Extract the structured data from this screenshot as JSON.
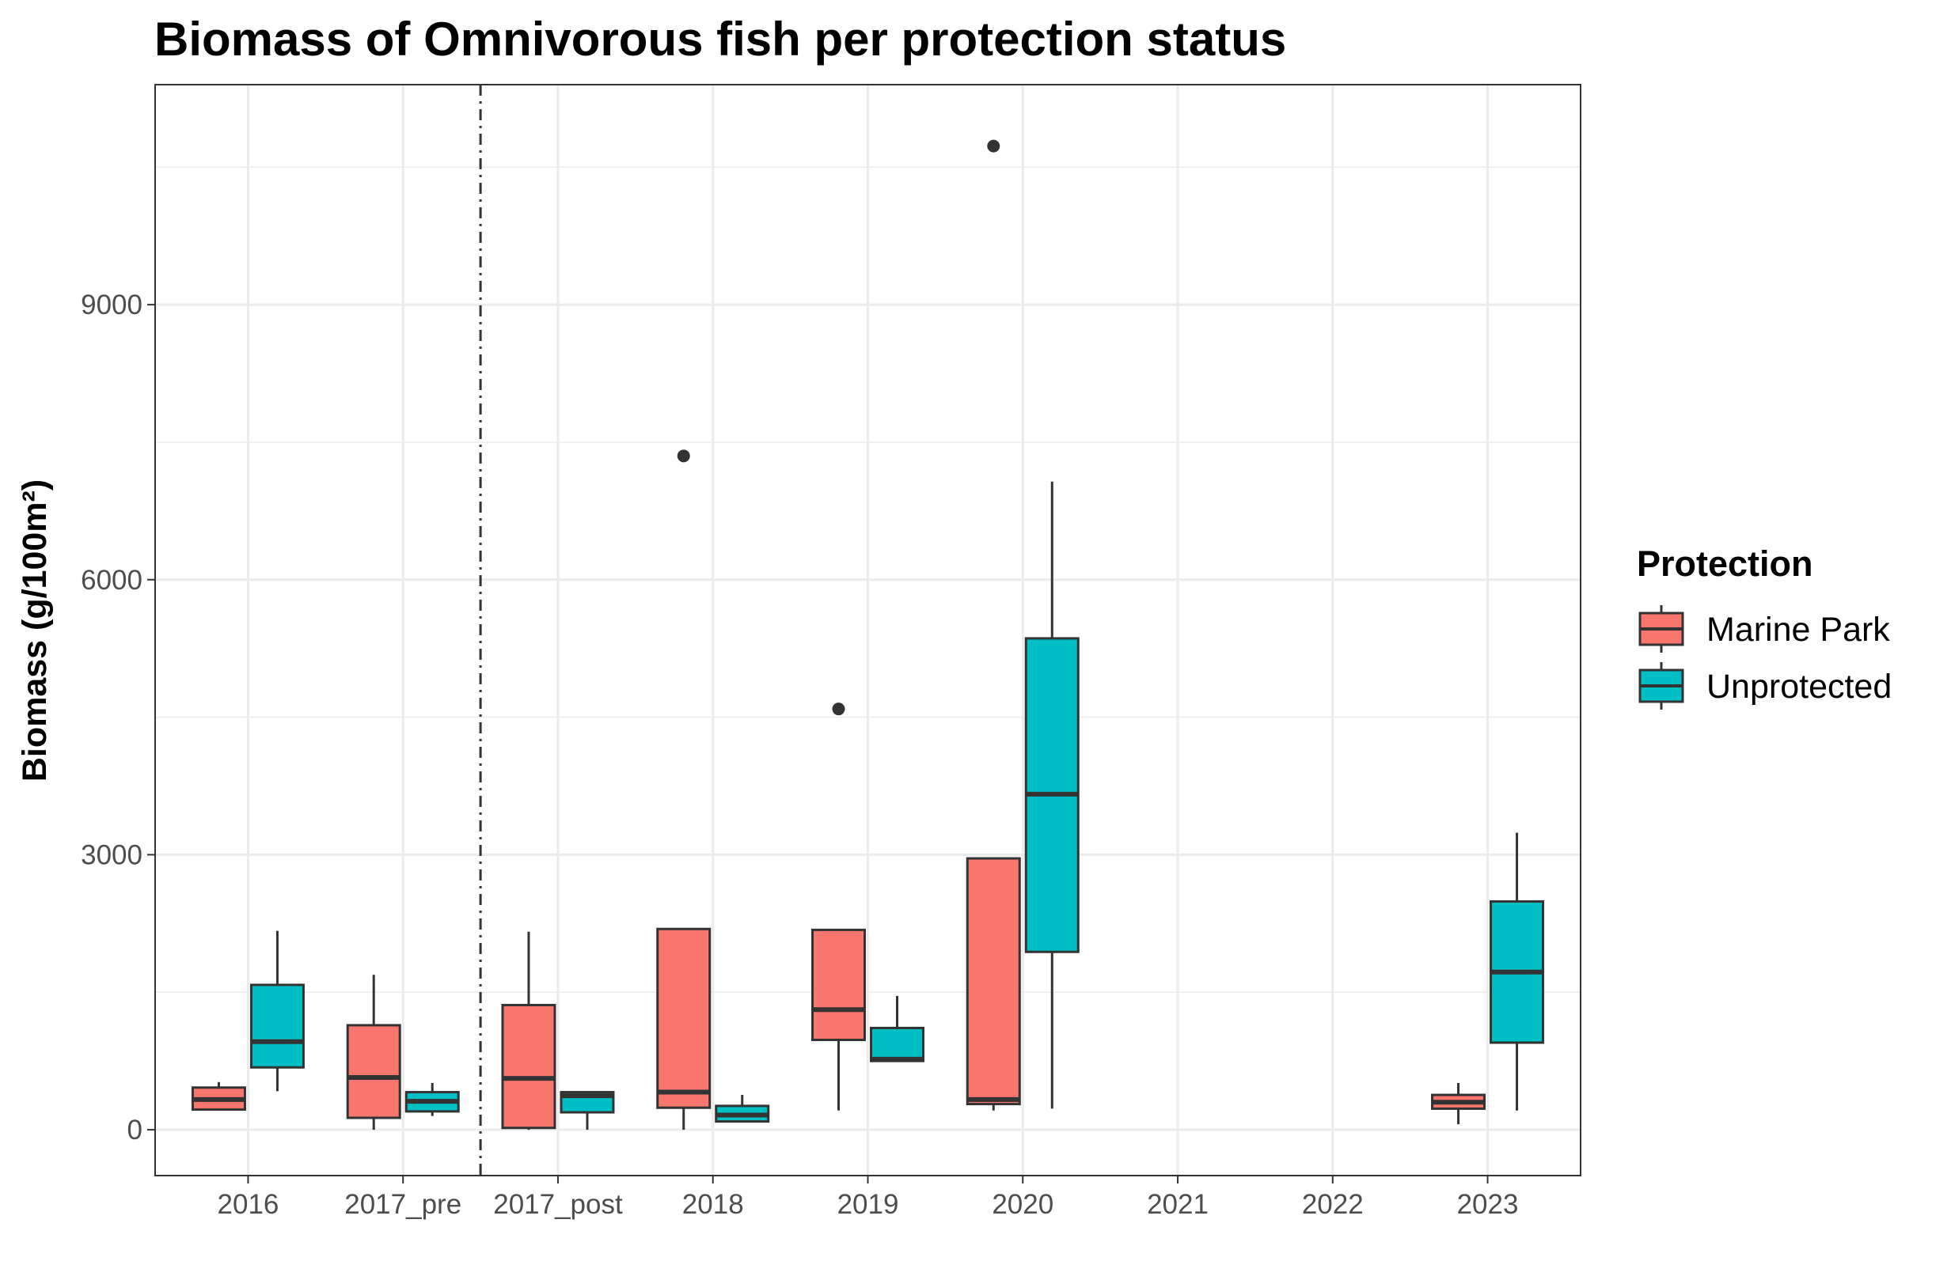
{
  "chart_data": {
    "type": "boxplot",
    "title": "Biomass of Omnivorous fish per protection status",
    "ylabel": "Biomass (g/100m²)",
    "xlabel": "",
    "ylim": [
      -500,
      11400
    ],
    "yticks": [
      0,
      3000,
      6000,
      9000
    ],
    "grid": true,
    "legend": {
      "title": "Protection",
      "position": "right"
    },
    "colors": {
      "Marine Park": "#F8766D",
      "Unprotected": "#00BFC4",
      "outline": "#333333",
      "grid": "#ebebeb",
      "divider": "#333333"
    },
    "categories": [
      "2016",
      "2017_pre",
      "2017_post",
      "2018",
      "2019",
      "2020",
      "2021",
      "2022",
      "2023"
    ],
    "divider_between": [
      "2017_pre",
      "2017_post"
    ],
    "series": [
      {
        "name": "Marine Park",
        "boxes": [
          {
            "category": "2016",
            "min": 220,
            "q1": 220,
            "median": 330,
            "q3": 460,
            "max": 520,
            "outliers": []
          },
          {
            "category": "2017_pre",
            "min": 0,
            "q1": 130,
            "median": 570,
            "q3": 1140,
            "max": 1690,
            "outliers": []
          },
          {
            "category": "2017_post",
            "min": 0,
            "q1": 20,
            "median": 560,
            "q3": 1360,
            "max": 2160,
            "outliers": []
          },
          {
            "category": "2018",
            "min": 0,
            "q1": 240,
            "median": 410,
            "q3": 2190,
            "max": 2190,
            "outliers": [
              7350
            ]
          },
          {
            "category": "2019",
            "min": 210,
            "q1": 980,
            "median": 1310,
            "q3": 2180,
            "max": 2180,
            "outliers": [
              4590
            ]
          },
          {
            "category": "2020",
            "min": 210,
            "q1": 280,
            "median": 330,
            "q3": 2960,
            "max": 2960,
            "outliers": [
              10730
            ]
          },
          {
            "category": "2023",
            "min": 60,
            "q1": 230,
            "median": 300,
            "q3": 380,
            "max": 510,
            "outliers": []
          }
        ]
      },
      {
        "name": "Unprotected",
        "boxes": [
          {
            "category": "2016",
            "min": 420,
            "q1": 680,
            "median": 960,
            "q3": 1580,
            "max": 2170,
            "outliers": []
          },
          {
            "category": "2017_pre",
            "min": 150,
            "q1": 200,
            "median": 310,
            "q3": 410,
            "max": 510,
            "outliers": []
          },
          {
            "category": "2017_post",
            "min": 0,
            "q1": 190,
            "median": 370,
            "q3": 410,
            "max": 410,
            "outliers": []
          },
          {
            "category": "2018",
            "min": 80,
            "q1": 90,
            "median": 160,
            "q3": 260,
            "max": 380,
            "outliers": []
          },
          {
            "category": "2019",
            "min": 750,
            "q1": 750,
            "median": 770,
            "q3": 1110,
            "max": 1460,
            "outliers": []
          },
          {
            "category": "2020",
            "min": 230,
            "q1": 1940,
            "median": 3660,
            "q3": 5360,
            "max": 7070,
            "outliers": []
          },
          {
            "category": "2023",
            "min": 210,
            "q1": 950,
            "median": 1720,
            "q3": 2490,
            "max": 3240,
            "outliers": []
          }
        ]
      }
    ]
  }
}
